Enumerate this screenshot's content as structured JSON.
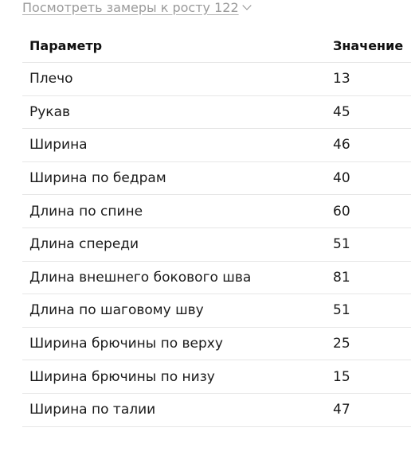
{
  "toggle": {
    "label": "Посмотреть замеры к росту 122"
  },
  "table": {
    "headers": {
      "param": "Параметр",
      "value": "Значение"
    },
    "rows": [
      {
        "param": "Плечо",
        "value": "13"
      },
      {
        "param": "Рукав",
        "value": "45"
      },
      {
        "param": "Ширина",
        "value": "46"
      },
      {
        "param": "Ширина по бедрам",
        "value": "40"
      },
      {
        "param": "Длина по спине",
        "value": "60"
      },
      {
        "param": "Длина спереди",
        "value": "51"
      },
      {
        "param": "Длина внешнего бокового шва",
        "value": "81"
      },
      {
        "param": "Длина по шаговому шву",
        "value": "51"
      },
      {
        "param": "Ширина брючины по верху",
        "value": "25"
      },
      {
        "param": "Ширина брючины по низу",
        "value": "15"
      },
      {
        "param": "Ширина по талии",
        "value": "47"
      }
    ]
  }
}
